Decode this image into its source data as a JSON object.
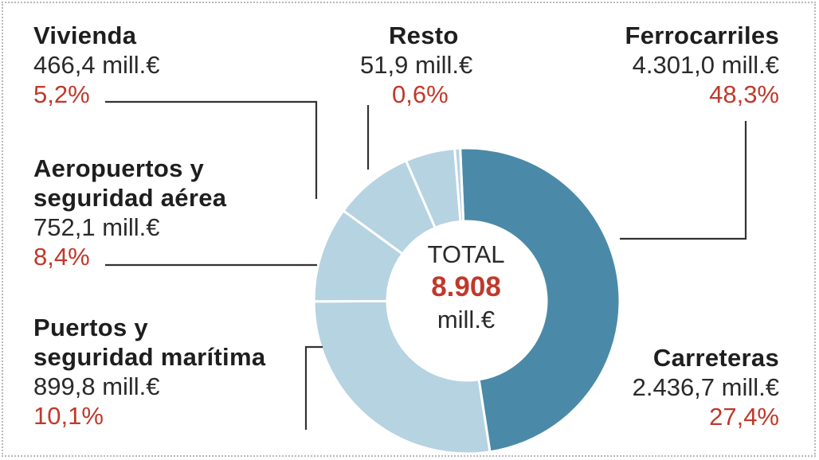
{
  "chart_data": {
    "type": "pie",
    "center_label": {
      "line1": "TOTAL",
      "value": "8.908",
      "unit": "mill.€"
    },
    "slices": [
      {
        "name": "Ferrocarriles",
        "value": 4301.0,
        "value_label": "4.301,0 mill.€",
        "percent_label": "48,3%",
        "color": "#4a8aa8"
      },
      {
        "name": "Carreteras",
        "value": 2436.7,
        "value_label": "2.436,7 mill.€",
        "percent_label": "27,4%",
        "color": "#b6d3e1"
      },
      {
        "name": "Puertos y seguridad marítima",
        "name_lines": [
          "Puertos y",
          "seguridad marítima"
        ],
        "value": 899.8,
        "value_label": "899,8 mill.€",
        "percent_label": "10,1%",
        "color": "#b6d3e1"
      },
      {
        "name": "Aeropuertos y seguridad aérea",
        "name_lines": [
          "Aeropuertos y",
          "seguridad aérea"
        ],
        "value": 752.1,
        "value_label": "752,1 mill.€",
        "percent_label": "8,4%",
        "color": "#b6d3e1"
      },
      {
        "name": "Vivienda",
        "value": 466.4,
        "value_label": "466,4 mill.€",
        "percent_label": "5,2%",
        "color": "#b6d3e1"
      },
      {
        "name": "Resto",
        "value": 51.9,
        "value_label": "51,9 mill.€",
        "percent_label": "0,6%",
        "color": "#b6d3e1"
      }
    ]
  },
  "colors": {
    "accent": "#c0392b",
    "primary_slice": "#4a8aa8",
    "secondary_slice": "#b6d3e1",
    "leader_line": "#333333"
  }
}
